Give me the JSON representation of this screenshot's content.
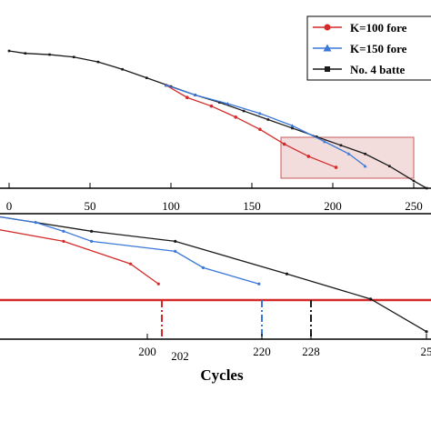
{
  "chart_data": [
    {
      "type": "line",
      "xlabel": "",
      "ylabel": "",
      "xlim": [
        0,
        260
      ],
      "xticks": [
        "0",
        "50",
        "100",
        "150",
        "200",
        "250"
      ],
      "legend": {
        "placement": "top-right",
        "entries": [
          "K=100 fore",
          "K=150 fore",
          "No. 4 batte"
        ]
      },
      "series": [
        {
          "name": "No. 4 batte",
          "color": "#1a1a1a",
          "marker": "square",
          "x": [
            0,
            10,
            25,
            40,
            55,
            70,
            85,
            100,
            115,
            130,
            145,
            160,
            175,
            190,
            205,
            220,
            235,
            250,
            258
          ],
          "y": [
            1.0,
            0.99,
            0.985,
            0.975,
            0.955,
            0.925,
            0.89,
            0.855,
            0.82,
            0.79,
            0.755,
            0.72,
            0.685,
            0.65,
            0.615,
            0.58,
            0.53,
            0.47,
            0.44
          ]
        },
        {
          "name": "K=100 fore",
          "color": "#d42a2a",
          "marker": "circle",
          "x": [
            97,
            110,
            125,
            140,
            155,
            170,
            185,
            202
          ],
          "y": [
            0.86,
            0.81,
            0.775,
            0.73,
            0.68,
            0.62,
            0.57,
            0.525
          ]
        },
        {
          "name": "K=150 fore",
          "color": "#3b78d8",
          "marker": "triangle",
          "x": [
            97,
            115,
            135,
            155,
            175,
            195,
            210,
            220
          ],
          "y": [
            0.86,
            0.82,
            0.785,
            0.745,
            0.695,
            0.63,
            0.58,
            0.53
          ]
        }
      ]
    },
    {
      "type": "line",
      "xlabel": "Cycles",
      "ylabel": "",
      "xlim": [
        170,
        250
      ],
      "xticks": [
        "200",
        "220",
        "228",
        "25"
      ],
      "threshold_line": {
        "color": "#d42a2a"
      },
      "annotations": [
        {
          "x": 202,
          "label": "202",
          "color": "#d42a2a"
        },
        {
          "x": 220,
          "label": "220",
          "color": "#3b78d8"
        },
        {
          "x": 228,
          "label": "228",
          "color": "#1a1a1a"
        }
      ],
      "series": [
        {
          "name": "No. 4 batte",
          "color": "#1a1a1a",
          "x": [
            170,
            190,
            205,
            225,
            240,
            250
          ],
          "y": [
            1.0,
            0.86,
            0.78,
            0.52,
            0.32,
            0.06
          ]
        },
        {
          "name": "K=150 fore",
          "color": "#3b78d8",
          "x": [
            170,
            180,
            185,
            190,
            205,
            210,
            220
          ],
          "y": [
            1.0,
            0.93,
            0.86,
            0.78,
            0.7,
            0.57,
            0.44
          ]
        },
        {
          "name": "K=100 fore",
          "color": "#d42a2a",
          "x": [
            170,
            185,
            197,
            202
          ],
          "y": [
            0.9,
            0.78,
            0.6,
            0.44
          ]
        }
      ]
    }
  ]
}
